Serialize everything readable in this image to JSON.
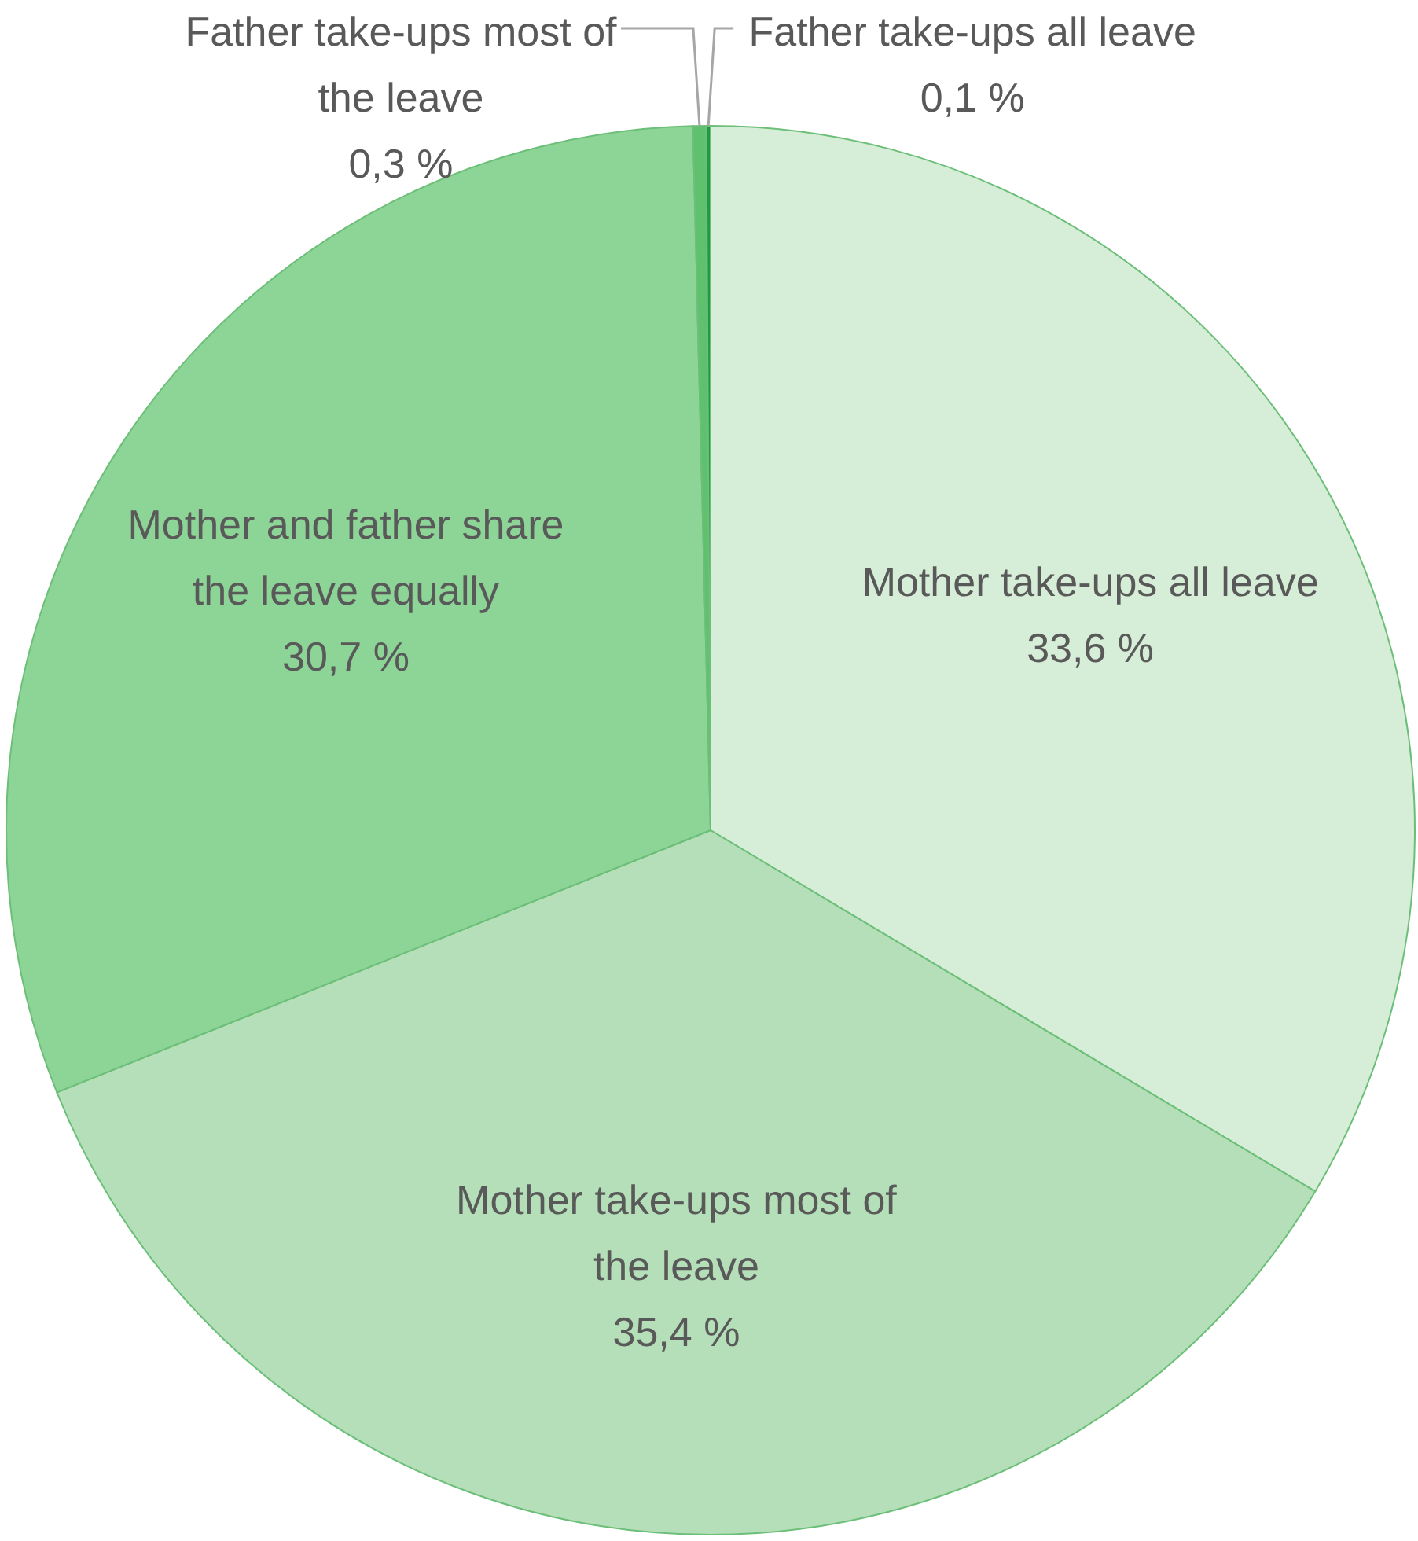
{
  "chart_data": {
    "type": "pie",
    "categories": [
      "Mother take-ups all leave",
      "Mother take-ups most of the leave",
      "Mother and father share the leave equally",
      "Father take-ups most of the leave",
      "Father take-ups all leave"
    ],
    "values": [
      33.6,
      35.4,
      30.7,
      0.3,
      0.1
    ],
    "colors": [
      "#d6edd7",
      "#b4dfb8",
      "#8dd497",
      "#5fc06e",
      "#1f9a3f"
    ],
    "value_labels": [
      "33,6 %",
      "35,4 %",
      "30,7 %",
      "0,3 %",
      "0,1 %"
    ]
  }
}
